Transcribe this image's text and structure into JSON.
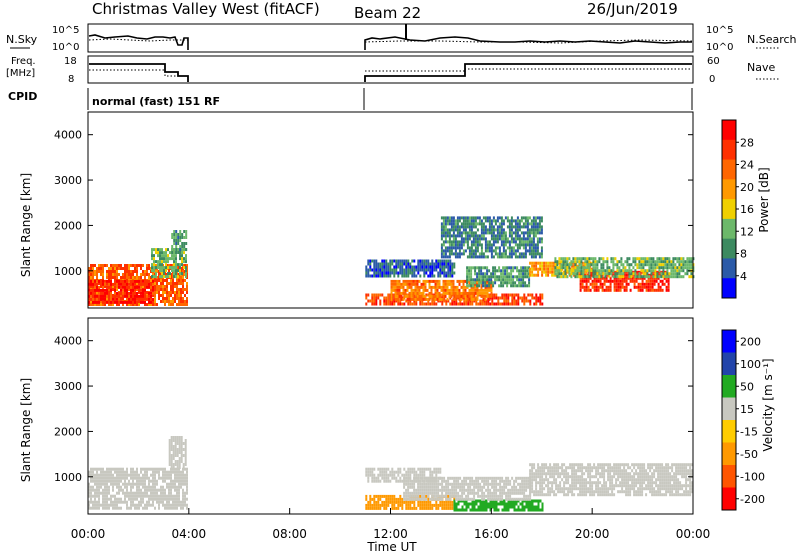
{
  "header": {
    "title": "Christmas Valley West (fitACF)",
    "beam": "Beam 22",
    "date": "26/Jun/2019"
  },
  "meta_panels": {
    "nsky_label": "N.Sky",
    "nsearch_label": "N.Search",
    "sky_ticks": [
      "10^5",
      "10^0"
    ],
    "search_ticks": [
      "10^5",
      "10^0"
    ],
    "freq_label_1": "Freq.",
    "freq_label_2": "[MHz]",
    "freq_ticks": [
      "18",
      "8"
    ],
    "nave_label": "Nave",
    "nave_ticks": [
      "60",
      "0"
    ],
    "cpid_label": "CPID",
    "cpid_text": "normal (fast) 151 RF"
  },
  "colors": {
    "power_scale": [
      "#0000ff",
      "#2b5aa8",
      "#3c8a60",
      "#6cb86a",
      "#f0d000",
      "#ff9900",
      "#ff6600",
      "#ff3000",
      "#ff0000"
    ],
    "velocity_scale": [
      "#0000ff",
      "#2244aa",
      "#22aa22",
      "#c8c8c0",
      "#ffcc00",
      "#ff9900",
      "#ff5500",
      "#ff0000"
    ]
  },
  "chart_data": [
    {
      "type": "heatmap",
      "name": "power",
      "ylabel": "Slant Range [km]",
      "xlabel": "",
      "ylim": [
        180,
        4500
      ],
      "xlim_hours": [
        0,
        24
      ],
      "yticks": [
        "1000",
        "2000",
        "3000",
        "4000"
      ],
      "ytick_values": [
        1000,
        2000,
        3000,
        4000
      ],
      "colorbar_label": "Power [dB]",
      "colorbar_ticks": [
        "4",
        "8",
        "12",
        "16",
        "20",
        "24",
        "28"
      ],
      "colorbar_range": [
        0,
        32
      ],
      "regions": [
        {
          "x": [
            0,
            3.9
          ],
          "y": [
            280,
            1150
          ],
          "level": 24
        },
        {
          "x": [
            0,
            2.6
          ],
          "y": [
            300,
            800
          ],
          "level": 28
        },
        {
          "x": [
            2.5,
            3.9
          ],
          "y": [
            900,
            1500
          ],
          "level": 12
        },
        {
          "x": [
            3.3,
            3.9
          ],
          "y": [
            1400,
            1900
          ],
          "level": 10
        },
        {
          "x": [
            11.0,
            14.5
          ],
          "y": [
            900,
            1250
          ],
          "level": 6
        },
        {
          "x": [
            11.0,
            18.0
          ],
          "y": [
            300,
            500
          ],
          "level": 26
        },
        {
          "x": [
            12.0,
            16.0
          ],
          "y": [
            400,
            800
          ],
          "level": 22
        },
        {
          "x": [
            15.0,
            17.5
          ],
          "y": [
            700,
            1100
          ],
          "level": 10
        },
        {
          "x": [
            17.5,
            20.0
          ],
          "y": [
            900,
            1200
          ],
          "level": 20
        },
        {
          "x": [
            19.5,
            23.0
          ],
          "y": [
            600,
            1000
          ],
          "level": 28
        },
        {
          "x": [
            18.5,
            24.0
          ],
          "y": [
            900,
            1300
          ],
          "level": 12
        },
        {
          "x": [
            14.0,
            18.0
          ],
          "y": [
            1300,
            2200
          ],
          "level": 8
        }
      ]
    },
    {
      "type": "heatmap",
      "name": "velocity",
      "ylabel": "Slant Range [km]",
      "xlabel": "Time UT",
      "ylim": [
        180,
        4500
      ],
      "xlim_hours": [
        0,
        24
      ],
      "yticks": [
        "1000",
        "2000",
        "3000",
        "4000"
      ],
      "ytick_values": [
        1000,
        2000,
        3000,
        4000
      ],
      "xticks": [
        "00:00",
        "04:00",
        "08:00",
        "12:00",
        "16:00",
        "20:00",
        "00:00"
      ],
      "colorbar_label": "Velocity [m s⁻¹]",
      "colorbar_ticks": [
        "200",
        "100",
        "50",
        "15",
        "-15",
        "-50",
        "-100",
        "-200"
      ],
      "regions": [
        {
          "x": [
            0,
            3.9
          ],
          "y": [
            280,
            1200
          ],
          "level": 0
        },
        {
          "x": [
            3.2,
            3.9
          ],
          "y": [
            1200,
            1900
          ],
          "level": 0
        },
        {
          "x": [
            11.0,
            14.5
          ],
          "y": [
            280,
            600
          ],
          "level": -60
        },
        {
          "x": [
            14.5,
            18.0
          ],
          "y": [
            280,
            500
          ],
          "level": 60
        },
        {
          "x": [
            12.5,
            17.5
          ],
          "y": [
            500,
            1000
          ],
          "level": 0
        },
        {
          "x": [
            17.5,
            24.0
          ],
          "y": [
            600,
            1300
          ],
          "level": 0
        },
        {
          "x": [
            11.0,
            14.0
          ],
          "y": [
            900,
            1200
          ],
          "level": 0
        }
      ]
    }
  ]
}
